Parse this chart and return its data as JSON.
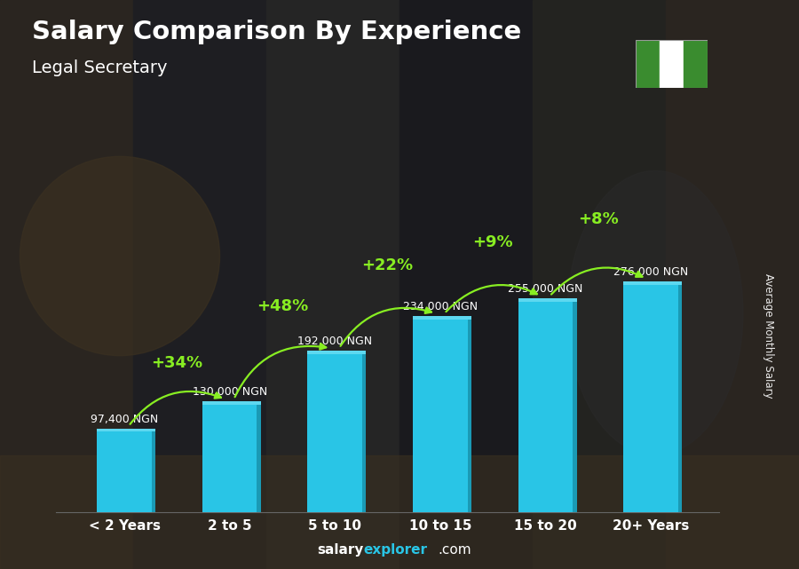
{
  "title": "Salary Comparison By Experience",
  "subtitle": "Legal Secretary",
  "categories": [
    "< 2 Years",
    "2 to 5",
    "5 to 10",
    "10 to 15",
    "15 to 20",
    "20+ Years"
  ],
  "values": [
    97400,
    130000,
    192000,
    234000,
    255000,
    276000
  ],
  "value_labels": [
    "97,400 NGN",
    "130,000 NGN",
    "192,000 NGN",
    "234,000 NGN",
    "255,000 NGN",
    "276,000 NGN"
  ],
  "pct_changes": [
    "+34%",
    "+48%",
    "+22%",
    "+9%",
    "+8%"
  ],
  "bar_face_color": "#29c5e6",
  "bar_right_color": "#1a9ab5",
  "bar_top_color": "#5dd8f0",
  "ylabel": "Average Monthly Salary",
  "bg_color": "#2b2b2b",
  "title_color": "#ffffff",
  "subtitle_color": "#ffffff",
  "value_label_color": "#ffffff",
  "pct_color": "#88ee22",
  "arrow_color": "#88ee22",
  "footer_salary_color": "#ffffff",
  "footer_explorer_color": "#29c5e6",
  "flag_green": "#3a8c2f",
  "flag_white": "#ffffff"
}
